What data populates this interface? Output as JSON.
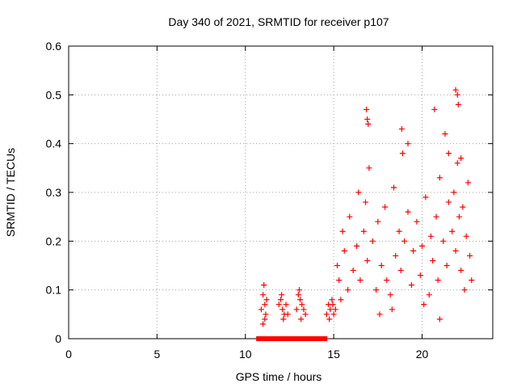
{
  "chart_data": {
    "type": "scatter",
    "title": "Day 340 of 2021, SRMTID for receiver p107",
    "xlabel": "GPS time / hours",
    "ylabel": "SRMTID / TECUs",
    "xlim": [
      0,
      24
    ],
    "ylim": [
      0,
      0.6
    ],
    "xticks": [
      0,
      5,
      10,
      15,
      20
    ],
    "xtick_labels": [
      "0",
      "5",
      "10",
      "15",
      "20"
    ],
    "yticks": [
      0,
      0.1,
      0.2,
      0.3,
      0.4,
      0.5,
      0.6
    ],
    "ytick_labels": [
      "0",
      "0.1",
      "0.2",
      "0.3",
      "0.4",
      "0.5",
      "0.6"
    ],
    "grid": true,
    "series": [
      {
        "name": "SRMTID",
        "marker": "+",
        "color": "#ff0000",
        "x": [
          10.75,
          11.0,
          11.25,
          11.5,
          11.75,
          12.0,
          12.25,
          12.5,
          12.75,
          13.0,
          13.25,
          13.5,
          13.75,
          14.0,
          14.25,
          14.5,
          10.9,
          11.0,
          11.05,
          11.1,
          11.15,
          11.2,
          11.1,
          11.0,
          11.9,
          12.0,
          12.1,
          12.2,
          12.3,
          12.4,
          12.05,
          12.15,
          12.9,
          13.0,
          13.1,
          13.2,
          13.3,
          13.4,
          13.05,
          13.15,
          14.6,
          14.7,
          14.8,
          14.9,
          15.0,
          15.1,
          14.75,
          14.95,
          15.2,
          15.3,
          15.5,
          15.6,
          15.8,
          15.9,
          16.1,
          16.3,
          16.4,
          16.5,
          16.7,
          16.8,
          16.9,
          17.0,
          17.2,
          17.4,
          17.5,
          17.7,
          17.9,
          18.0,
          18.2,
          18.4,
          18.5,
          18.7,
          18.8,
          18.9,
          19.0,
          19.2,
          19.4,
          19.5,
          19.7,
          19.9,
          20.0,
          20.2,
          20.4,
          20.5,
          20.6,
          20.8,
          20.9,
          21.0,
          21.2,
          21.4,
          21.5,
          21.7,
          21.8,
          21.9,
          22.0,
          22.1,
          22.2,
          22.3,
          22.5,
          22.6,
          22.7,
          22.8,
          16.85,
          16.9,
          18.85,
          20.7,
          21.9,
          22.0,
          22.05,
          16.95,
          19.2,
          21.3,
          21.5,
          22.2,
          15.4,
          17.6,
          18.3,
          20.1,
          21.0,
          22.4
        ],
        "y": [
          0,
          0,
          0,
          0,
          0,
          0,
          0,
          0,
          0,
          0,
          0,
          0,
          0,
          0,
          0,
          0,
          0.06,
          0.09,
          0.11,
          0.07,
          0.05,
          0.08,
          0.04,
          0.03,
          0.07,
          0.08,
          0.06,
          0.05,
          0.07,
          0.05,
          0.09,
          0.04,
          0.06,
          0.09,
          0.08,
          0.07,
          0.06,
          0.05,
          0.1,
          0.04,
          0.05,
          0.07,
          0.06,
          0.08,
          0.05,
          0.06,
          0.04,
          0.07,
          0.15,
          0.12,
          0.22,
          0.18,
          0.1,
          0.25,
          0.14,
          0.19,
          0.3,
          0.12,
          0.22,
          0.28,
          0.16,
          0.35,
          0.2,
          0.1,
          0.24,
          0.15,
          0.27,
          0.12,
          0.09,
          0.31,
          0.17,
          0.22,
          0.14,
          0.38,
          0.2,
          0.26,
          0.11,
          0.18,
          0.24,
          0.13,
          0.19,
          0.29,
          0.09,
          0.21,
          0.16,
          0.25,
          0.12,
          0.33,
          0.2,
          0.15,
          0.28,
          0.22,
          0.3,
          0.18,
          0.36,
          0.25,
          0.14,
          0.27,
          0.21,
          0.32,
          0.17,
          0.12,
          0.47,
          0.45,
          0.43,
          0.47,
          0.51,
          0.5,
          0.48,
          0.44,
          0.4,
          0.42,
          0.38,
          0.37,
          0.08,
          0.05,
          0.06,
          0.07,
          0.04,
          0.1
        ]
      }
    ]
  }
}
